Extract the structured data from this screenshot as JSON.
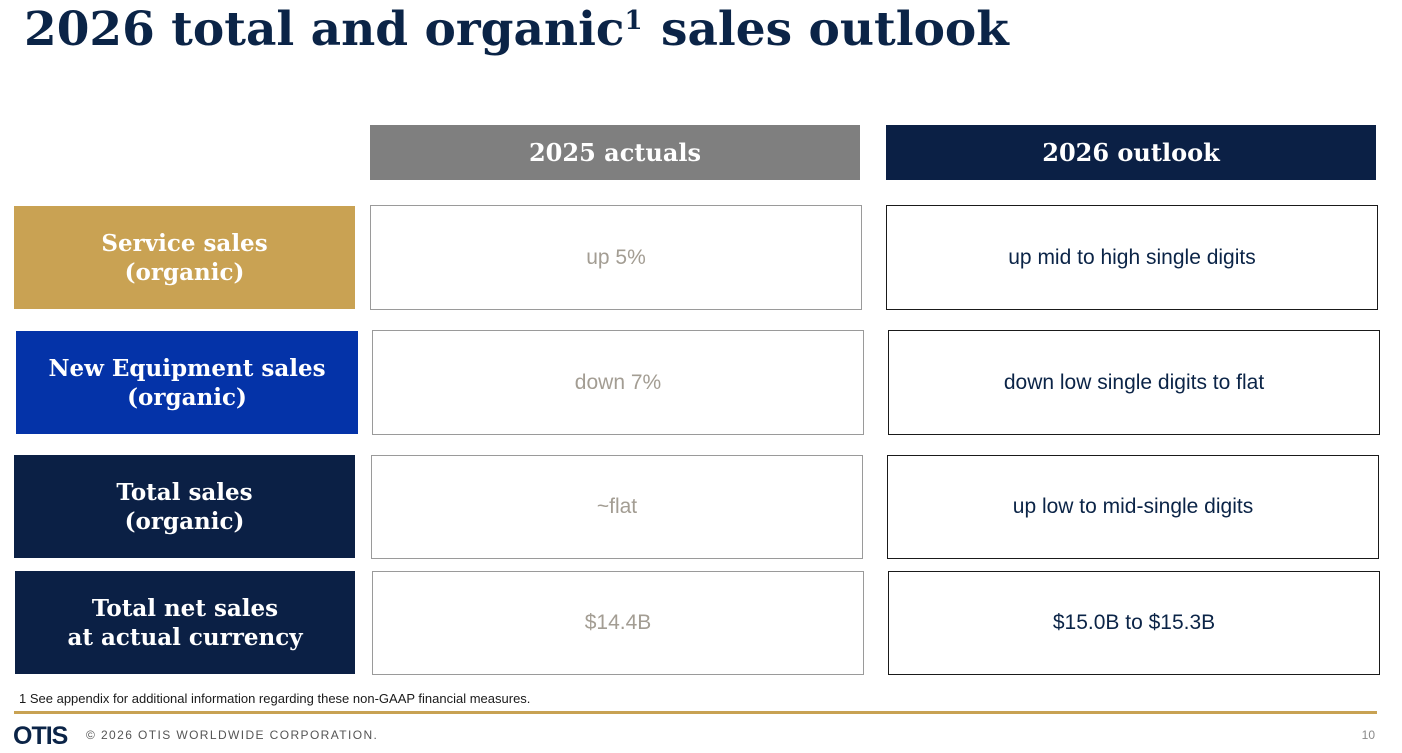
{
  "title": {
    "text_before": "2026 total and organic",
    "superscript": "1",
    "text_after": " sales outlook"
  },
  "columns": {
    "actuals": "2025 actuals",
    "outlook": "2026 outlook"
  },
  "rows": [
    {
      "label_line1": "Service sales",
      "label_line2": "(organic)",
      "actual": "up 5%",
      "outlook": "up mid to high single digits",
      "color": "#c9a253"
    },
    {
      "label_line1": "New Equipment sales",
      "label_line2": "(organic)",
      "actual": "down 7%",
      "outlook": "down low single digits to flat",
      "color": "#0433a8"
    },
    {
      "label_line1": "Total sales",
      "label_line2": "(organic)",
      "actual": "~flat",
      "outlook": "up low to mid-single digits",
      "color": "#0b2045"
    },
    {
      "label_line1": "Total net sales",
      "label_line2": "at actual currency",
      "actual": "$14.4B",
      "outlook": "$15.0B to $15.3B",
      "color": "#0b2045"
    }
  ],
  "colors": {
    "actuals_header": "#7f7f7f",
    "outlook_header": "#0b2045",
    "gold_rule": "#c8a253"
  },
  "footnote": "1 See appendix for additional information regarding these non-GAAP financial measures.",
  "footer": {
    "logo": "OTIS",
    "copyright": "© 2026 OTIS WORLDWIDE CORPORATION.",
    "page_number": "10"
  }
}
